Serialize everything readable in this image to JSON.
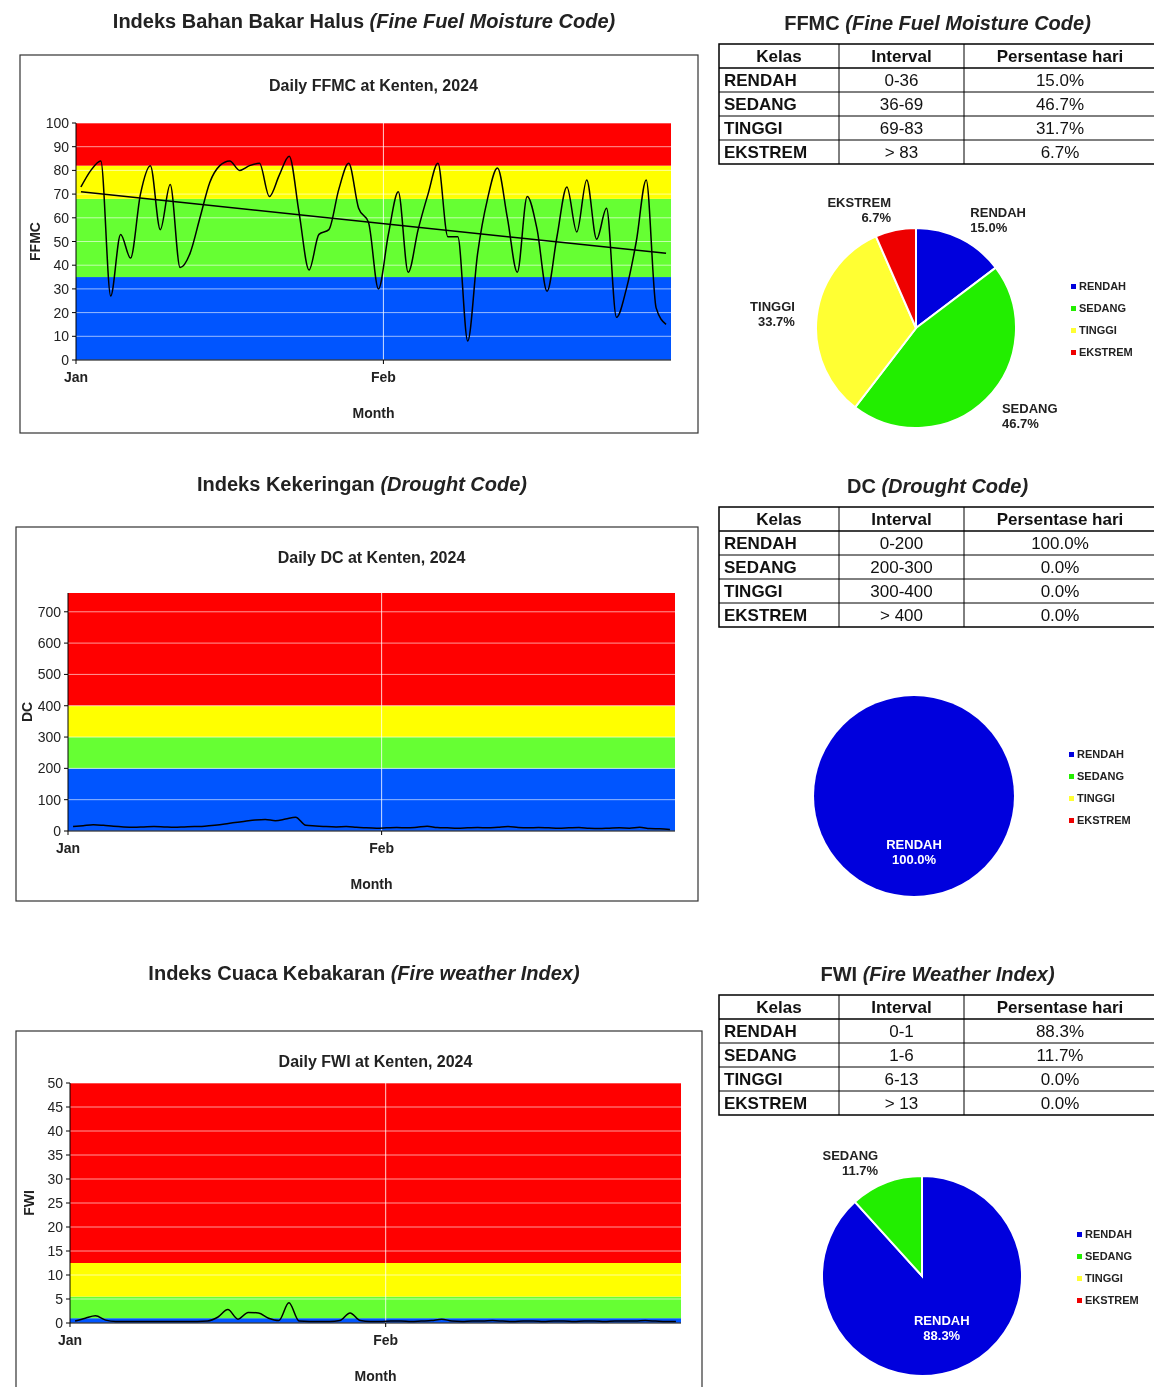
{
  "chart_data": [
    {
      "type": "line",
      "title": "Indeks Bahan Bakar Halus (Fine Fuel Moisture Code)",
      "subtitle": "Daily FFMC at Kenten, 2024",
      "xlabel": "Month",
      "ylabel": "FFMC",
      "x": [
        "2024-01-01T12:00",
        "2024-01-02T12:00",
        "2024-01-03T12:00",
        "2024-01-04T12:00",
        "2024-01-05T12:00",
        "2024-01-06T12:00",
        "2024-01-07T12:00",
        "2024-01-08T12:00",
        "2024-01-09T12:00",
        "2024-01-10T12:00",
        "2024-01-11T12:00",
        "2024-01-12T12:00",
        "2024-01-13T12:00",
        "2024-01-14T12:00",
        "2024-01-15T12:00",
        "2024-01-16T12:00",
        "2024-01-17T12:00",
        "2024-01-18T12:00",
        "2024-01-19T12:00",
        "2024-01-20T12:00",
        "2024-01-21T12:00",
        "2024-01-22T12:00",
        "2024-01-23T12:00",
        "2024-01-24T12:00",
        "2024-01-25T12:00",
        "2024-01-26T12:00",
        "2024-01-27T12:00",
        "2024-01-28T12:00",
        "2024-01-29T12:00",
        "2024-01-30T12:00",
        "2024-01-31T12:00",
        "2024-02-01T12:00",
        "2024-02-02T12:00",
        "2024-02-03T12:00",
        "2024-02-04T12:00",
        "2024-02-05T12:00",
        "2024-02-06T12:00",
        "2024-02-07T12:00",
        "2024-02-08T12:00",
        "2024-02-09T12:00",
        "2024-02-10T12:00",
        "2024-02-11T12:00",
        "2024-02-12T12:00",
        "2024-02-13T12:00",
        "2024-02-14T12:00",
        "2024-02-15T12:00",
        "2024-02-16T12:00",
        "2024-02-17T12:00",
        "2024-02-18T12:00",
        "2024-02-19T12:00",
        "2024-02-20T12:00",
        "2024-02-21T12:00",
        "2024-02-22T12:00",
        "2024-02-23T12:00",
        "2024-02-24T12:00",
        "2024-02-25T12:00",
        "2024-02-26T12:00",
        "2024-02-27T12:00",
        "2024-02-28T12:00",
        "2024-02-29T12:00"
      ],
      "series": [
        {
          "color": "#000000",
          "values": [
            73,
            80,
            84,
            27,
            53,
            43,
            70,
            82,
            55,
            74,
            39,
            45,
            60,
            75,
            82,
            84,
            80,
            82,
            83,
            69,
            78,
            86,
            62,
            38,
            53,
            55,
            72,
            83,
            64,
            58,
            30,
            53,
            71,
            37,
            55,
            70,
            83,
            52,
            52,
            8,
            45,
            68,
            81,
            60,
            37,
            69,
            55,
            29,
            52,
            73,
            54,
            76,
            51,
            64,
            18,
            30,
            50,
            76,
            22,
            15
          ]
        },
        {
          "type": "line",
          "color": "#000000",
          "x": [
            "2024-01-01T12:00",
            "2024-02-29T12:00"
          ],
          "values": [
            71,
            45
          ]
        }
      ],
      "xlim": [
        "2024-01-01",
        "2024-03-01"
      ],
      "xticks": [
        {
          "value": "2024-01-01",
          "label": "Jan"
        },
        {
          "value": "2024-02-01",
          "label": "Feb"
        }
      ],
      "ylim": [
        0,
        100
      ],
      "yticks": [
        0,
        10,
        20,
        30,
        40,
        50,
        60,
        70,
        80,
        90,
        100
      ],
      "grid": "y",
      "ref_lines": [
        {
          "axis": "x",
          "value": "2024-02-01",
          "color": "#ffffff"
        }
      ],
      "bands": [
        {
          "axis": "y",
          "from": 0,
          "to": 35,
          "color": "#0055ff"
        },
        {
          "axis": "y",
          "from": 35,
          "to": 68,
          "color": "#66ff33"
        },
        {
          "axis": "y",
          "from": 68,
          "to": 82,
          "color": "#ffff00"
        },
        {
          "axis": "y",
          "from": 82,
          "to": 100,
          "color": "#ff0000"
        }
      ]
    },
    {
      "type": "other",
      "title": "FFMC (Fine Fuel Moisture Code)",
      "annotations": [
        "Kelas",
        "Interval",
        "Persentase hari",
        "RENDAH",
        "0-36",
        "15.0%",
        "SEDANG",
        "36-69",
        "46.7%",
        "TINGGI",
        "69-83",
        "31.7%",
        "EKSTREM",
        "> 83",
        "6.7%"
      ]
    },
    {
      "type": "pie",
      "categories": [
        "RENDAH",
        "SEDANG",
        "TINGGI",
        "EKSTREM"
      ],
      "values": [
        15.0,
        46.7,
        33.7,
        6.7
      ],
      "value_labels": [
        "15.0%",
        "46.7%",
        "33.7%",
        "6.7%"
      ],
      "colors": [
        "#0000dd",
        "#22ee00",
        "#ffff33",
        "#ee0000"
      ],
      "legend": "right"
    },
    {
      "type": "line",
      "title": "Indeks Kekeringan (Drought Code)",
      "subtitle": "Daily DC at Kenten, 2024",
      "xlabel": "Month",
      "ylabel": "DC",
      "x": [
        "2024-01-01T12:00",
        "2024-01-02T12:00",
        "2024-01-03T12:00",
        "2024-01-04T12:00",
        "2024-01-05T12:00",
        "2024-01-06T12:00",
        "2024-01-07T12:00",
        "2024-01-08T12:00",
        "2024-01-09T12:00",
        "2024-01-10T12:00",
        "2024-01-11T12:00",
        "2024-01-12T12:00",
        "2024-01-13T12:00",
        "2024-01-14T12:00",
        "2024-01-15T12:00",
        "2024-01-16T12:00",
        "2024-01-17T12:00",
        "2024-01-18T12:00",
        "2024-01-19T12:00",
        "2024-01-20T12:00",
        "2024-01-21T12:00",
        "2024-01-22T12:00",
        "2024-01-23T12:00",
        "2024-01-24T12:00",
        "2024-01-25T12:00",
        "2024-01-26T12:00",
        "2024-01-27T12:00",
        "2024-01-28T12:00",
        "2024-01-29T12:00",
        "2024-01-30T12:00",
        "2024-01-31T12:00",
        "2024-02-01T12:00",
        "2024-02-02T12:00",
        "2024-02-03T12:00",
        "2024-02-04T12:00",
        "2024-02-05T12:00",
        "2024-02-06T12:00",
        "2024-02-07T12:00",
        "2024-02-08T12:00",
        "2024-02-09T12:00",
        "2024-02-10T12:00",
        "2024-02-11T12:00",
        "2024-02-12T12:00",
        "2024-02-13T12:00",
        "2024-02-14T12:00",
        "2024-02-15T12:00",
        "2024-02-16T12:00",
        "2024-02-17T12:00",
        "2024-02-18T12:00",
        "2024-02-19T12:00",
        "2024-02-20T12:00",
        "2024-02-21T12:00",
        "2024-02-22T12:00",
        "2024-02-23T12:00",
        "2024-02-24T12:00",
        "2024-02-25T12:00",
        "2024-02-26T12:00",
        "2024-02-27T12:00",
        "2024-02-28T12:00",
        "2024-02-29T12:00"
      ],
      "series": [
        {
          "color": "#000000",
          "values": [
            14,
            17,
            20,
            18,
            15,
            13,
            12,
            13,
            14,
            13,
            12,
            13,
            14,
            15,
            18,
            22,
            27,
            31,
            35,
            37,
            33,
            38,
            44,
            18,
            16,
            14,
            13,
            14,
            12,
            10,
            9,
            10,
            11,
            10,
            12,
            15,
            11,
            10,
            9,
            10,
            11,
            10,
            12,
            14,
            11,
            10,
            11,
            10,
            9,
            10,
            11,
            9,
            8,
            9,
            10,
            9,
            12,
            8,
            7,
            5
          ]
        }
      ],
      "xlim": [
        "2024-01-01",
        "2024-03-01"
      ],
      "xticks": [
        {
          "value": "2024-01-01",
          "label": "Jan"
        },
        {
          "value": "2024-02-01",
          "label": "Feb"
        }
      ],
      "ylim": [
        0,
        760
      ],
      "yticks": [
        0,
        100,
        200,
        300,
        400,
        500,
        600,
        700
      ],
      "grid": "y",
      "ref_lines": [
        {
          "axis": "x",
          "value": "2024-02-01",
          "color": "#ffffff"
        }
      ],
      "bands": [
        {
          "axis": "y",
          "from": 0,
          "to": 200,
          "color": "#0055ff"
        },
        {
          "axis": "y",
          "from": 200,
          "to": 300,
          "color": "#66ff33"
        },
        {
          "axis": "y",
          "from": 300,
          "to": 400,
          "color": "#ffff00"
        },
        {
          "axis": "y",
          "from": 400,
          "to": 760,
          "color": "#ff0000"
        }
      ]
    },
    {
      "type": "other",
      "title": "DC (Drought Code)",
      "annotations": [
        "Kelas",
        "Interval",
        "Persentase hari",
        "RENDAH",
        "0-200",
        "100.0%",
        "SEDANG",
        "200-300",
        "0.0%",
        "TINGGI",
        "300-400",
        "0.0%",
        "EKSTREM",
        "> 400",
        "0.0%"
      ]
    },
    {
      "type": "pie",
      "categories": [
        "RENDAH",
        "SEDANG",
        "TINGGI",
        "EKSTREM"
      ],
      "values": [
        100,
        0,
        0,
        0
      ],
      "value_labels": [
        "100.0%",
        null,
        null,
        null
      ],
      "colors": [
        "#0000dd",
        "#22ee00",
        "#ffff33",
        "#ee0000"
      ],
      "legend": "right"
    },
    {
      "type": "line",
      "title": "Indeks Cuaca Kebakaran (Fire weather Index)",
      "subtitle": "Daily FWI at Kenten, 2024",
      "xlabel": "Month",
      "ylabel": "FWI",
      "x": [
        "2024-01-01T12:00",
        "2024-01-02T12:00",
        "2024-01-03T12:00",
        "2024-01-04T12:00",
        "2024-01-05T12:00",
        "2024-01-06T12:00",
        "2024-01-07T12:00",
        "2024-01-08T12:00",
        "2024-01-09T12:00",
        "2024-01-10T12:00",
        "2024-01-11T12:00",
        "2024-01-12T12:00",
        "2024-01-13T12:00",
        "2024-01-14T12:00",
        "2024-01-15T12:00",
        "2024-01-16T12:00",
        "2024-01-17T12:00",
        "2024-01-18T12:00",
        "2024-01-19T12:00",
        "2024-01-20T12:00",
        "2024-01-21T12:00",
        "2024-01-22T12:00",
        "2024-01-23T12:00",
        "2024-01-24T12:00",
        "2024-01-25T12:00",
        "2024-01-26T12:00",
        "2024-01-27T12:00",
        "2024-01-28T12:00",
        "2024-01-29T12:00",
        "2024-01-30T12:00",
        "2024-01-31T12:00",
        "2024-02-01T12:00",
        "2024-02-02T12:00",
        "2024-02-03T12:00",
        "2024-02-04T12:00",
        "2024-02-05T12:00",
        "2024-02-06T12:00",
        "2024-02-07T12:00",
        "2024-02-08T12:00",
        "2024-02-09T12:00",
        "2024-02-10T12:00",
        "2024-02-11T12:00",
        "2024-02-12T12:00",
        "2024-02-13T12:00",
        "2024-02-14T12:00",
        "2024-02-15T12:00",
        "2024-02-16T12:00",
        "2024-02-17T12:00",
        "2024-02-18T12:00",
        "2024-02-19T12:00",
        "2024-02-20T12:00",
        "2024-02-21T12:00",
        "2024-02-22T12:00",
        "2024-02-23T12:00",
        "2024-02-24T12:00",
        "2024-02-25T12:00",
        "2024-02-26T12:00",
        "2024-02-27T12:00",
        "2024-02-28T12:00",
        "2024-02-29T12:00"
      ],
      "series": [
        {
          "color": "#000000",
          "values": [
            0.4,
            1.0,
            1.5,
            0.6,
            0.3,
            0.3,
            0.3,
            0.3,
            0.3,
            0.3,
            0.3,
            0.3,
            0.3,
            0.4,
            1.2,
            2.8,
            0.8,
            2.2,
            2.1,
            1.0,
            0.5,
            4.2,
            0.4,
            0.3,
            0.3,
            0.3,
            0.5,
            2.1,
            0.5,
            0.3,
            0.3,
            0.4,
            0.4,
            0.3,
            0.4,
            0.5,
            0.8,
            0.4,
            0.3,
            0.4,
            0.4,
            0.5,
            0.4,
            0.3,
            0.4,
            0.4,
            0.3,
            0.4,
            0.4,
            0.3,
            0.4,
            0.4,
            0.3,
            0.4,
            0.4,
            0.4,
            0.5,
            0.4,
            0.3,
            0.3
          ]
        }
      ],
      "xlim": [
        "2024-01-01",
        "2024-03-01"
      ],
      "xticks": [
        {
          "value": "2024-01-01",
          "label": "Jan"
        },
        {
          "value": "2024-02-01",
          "label": "Feb"
        }
      ],
      "ylim": [
        0,
        50
      ],
      "yticks": [
        0,
        5,
        10,
        15,
        20,
        25,
        30,
        35,
        40,
        45,
        50
      ],
      "grid": "y",
      "ref_lines": [
        {
          "axis": "x",
          "value": "2024-02-01",
          "color": "#ffffff"
        }
      ],
      "bands": [
        {
          "axis": "y",
          "from": 0,
          "to": 1,
          "color": "#0055ff"
        },
        {
          "axis": "y",
          "from": 1,
          "to": 5.5,
          "color": "#66ff33"
        },
        {
          "axis": "y",
          "from": 5.5,
          "to": 12.5,
          "color": "#ffff00"
        },
        {
          "axis": "y",
          "from": 12.5,
          "to": 50,
          "color": "#ff0000"
        }
      ]
    },
    {
      "type": "other",
      "title": "FWI (Fire Weather Index)",
      "annotations": [
        "Kelas",
        "Interval",
        "Persentase hari",
        "RENDAH",
        "0-1",
        "88.3%",
        "SEDANG",
        "1-6",
        "11.7%",
        "TINGGI",
        "6-13",
        "0.0%",
        "EKSTREM",
        "> 13",
        "0.0%"
      ]
    },
    {
      "type": "pie",
      "categories": [
        "RENDAH",
        "SEDANG",
        "TINGGI",
        "EKSTREM"
      ],
      "values": [
        88.3,
        11.7,
        0,
        0
      ],
      "value_labels": [
        "88.3%",
        "11.7%",
        null,
        null
      ],
      "colors": [
        "#0000dd",
        "#22ee00",
        "#ffff33",
        "#ee0000"
      ],
      "legend": "right"
    }
  ]
}
